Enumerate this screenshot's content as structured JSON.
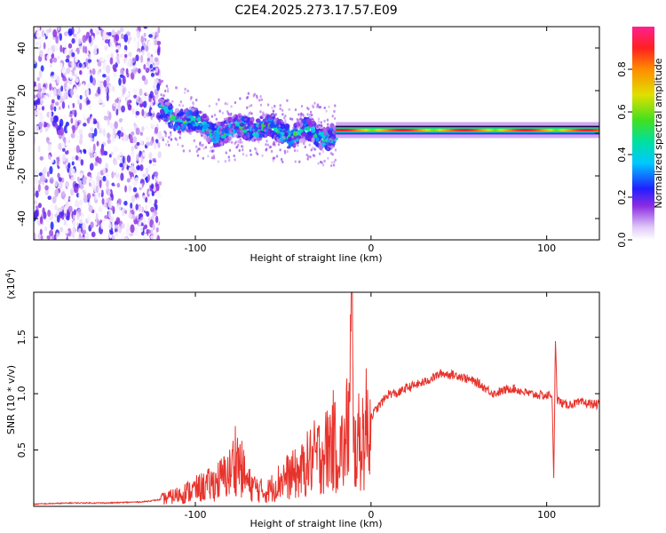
{
  "chart_data": [
    {
      "type": "heatmap",
      "title": "C2E4.2025.273.17.57.E09",
      "xlabel": "Height of straight line (km)",
      "ylabel": "Frequency (Hz)",
      "xlim": [
        -192,
        130
      ],
      "ylim": [
        -50,
        50
      ],
      "xticks": [
        -100,
        0,
        100
      ],
      "yticks": [
        -40,
        -20,
        0,
        20,
        40
      ],
      "colorbar": {
        "label": "Normalized spectral amplitude",
        "ticks": [
          0.0,
          0.2,
          0.4,
          0.6,
          0.8
        ],
        "range": [
          0,
          1
        ]
      },
      "regions": [
        {
          "name": "broadband noise",
          "x": [
            -192,
            -120
          ],
          "freq": [
            -50,
            50
          ],
          "amplitude": 0.1
        },
        {
          "name": "wandering signal",
          "x": [
            -120,
            -20
          ],
          "center_freq": [
            10,
            7,
            3,
            0,
            4,
            2,
            0,
            0,
            -1
          ],
          "amplitude": 0.5
        },
        {
          "name": "steady tone",
          "x": [
            -20,
            130
          ],
          "center_freq": 1.5,
          "amplitude": 0.9
        }
      ]
    },
    {
      "type": "line",
      "title": "",
      "xlabel": "Height of straight line (km)",
      "ylabel": "SNR (10 * v/v)",
      "y_multiplier": "(x10^4)",
      "y_multiplier_base": "(x10",
      "y_multiplier_exp": "4",
      "xlim": [
        -192,
        130
      ],
      "ylim": [
        0,
        1.9
      ],
      "xticks": [
        -100,
        0,
        100
      ],
      "yticks": [
        0.5,
        1.0,
        1.5
      ],
      "ytick_labels": [
        "0.5",
        "1.0",
        "1.5"
      ],
      "series": [
        {
          "name": "SNR",
          "color": "#e8332c",
          "x": [
            -192,
            -170,
            -150,
            -130,
            -120,
            -110,
            -100,
            -90,
            -80,
            -77,
            -70,
            -60,
            -50,
            -40,
            -35,
            -30,
            -25,
            -22,
            -20,
            -15,
            -12,
            -11,
            -10,
            -5,
            0,
            5,
            10,
            15,
            20,
            30,
            40,
            50,
            60,
            65,
            70,
            80,
            90,
            100,
            103,
            104,
            105,
            106,
            110,
            120,
            130
          ],
          "y": [
            0.02,
            0.03,
            0.03,
            0.04,
            0.06,
            0.1,
            0.15,
            0.2,
            0.3,
            0.45,
            0.2,
            0.12,
            0.25,
            0.3,
            0.4,
            0.45,
            0.5,
            0.6,
            0.5,
            0.5,
            0.9,
            1.85,
            0.5,
            0.6,
            0.8,
            0.9,
            1.0,
            1.0,
            1.05,
            1.1,
            1.18,
            1.16,
            1.1,
            1.05,
            1.0,
            1.05,
            1.0,
            0.98,
            1.0,
            0.22,
            1.5,
            0.95,
            0.9,
            0.92,
            0.9
          ]
        }
      ]
    }
  ]
}
